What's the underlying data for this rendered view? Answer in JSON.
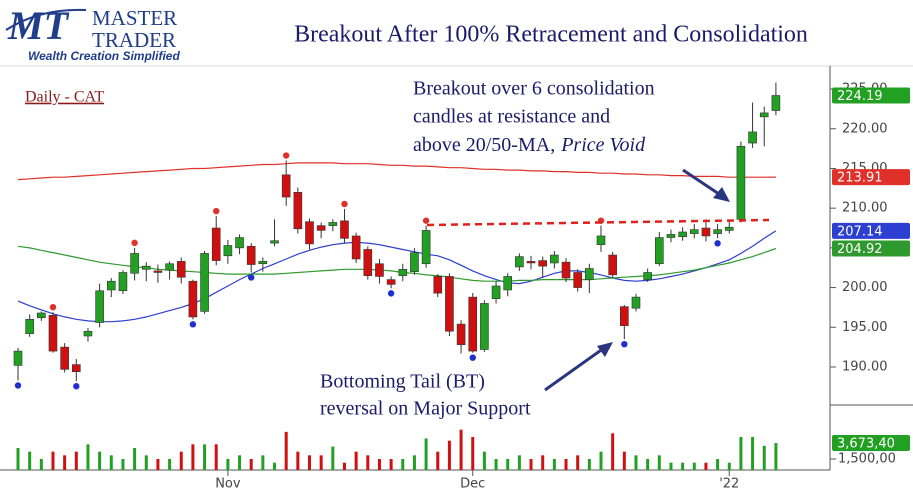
{
  "header": {
    "logo_mark": "MT",
    "logo_line1": "MASTER",
    "logo_line2": "TRADER",
    "tagline": "Wealth Creation Simplified"
  },
  "chart_data": {
    "type": "candlestick",
    "title": "Breakout After 100% Retracement and Consolidation",
    "subtitle": "Daily - CAT",
    "annotations": [
      {
        "lines": [
          "Breakout over 6 consolidation",
          "candles at resistance and",
          "above 20/50-MA,"
        ],
        "italic": "Price Void"
      },
      {
        "lines": [
          "Bottoming Tail (BT)",
          "reversal on Major Support"
        ]
      }
    ],
    "categories": [
      null,
      null,
      null,
      null,
      null,
      null,
      null,
      null,
      null,
      null,
      null,
      null,
      null,
      null,
      null,
      null,
      null,
      null,
      "Nov",
      null,
      null,
      null,
      null,
      null,
      null,
      null,
      null,
      null,
      null,
      null,
      null,
      null,
      null,
      null,
      null,
      null,
      null,
      null,
      null,
      "Dec",
      null,
      null,
      null,
      null,
      null,
      null,
      null,
      null,
      null,
      null,
      null,
      null,
      null,
      null,
      null,
      null,
      null,
      null,
      null,
      null,
      null,
      "'22",
      null,
      null,
      null,
      null
    ],
    "open": [
      190.2,
      194.2,
      196.2,
      196.5,
      192.5,
      190.3,
      193.9,
      195.6,
      199.7,
      199.6,
      201.8,
      202.3,
      202.1,
      202.2,
      203.3,
      200.8,
      197.0,
      207.5,
      204.0,
      205.0,
      205.2,
      203.0,
      205.6,
      214.2,
      212.0,
      208.3,
      207.8,
      207.8,
      208.4,
      206.5,
      204.8,
      203.0,
      201.0,
      201.5,
      202.0,
      203.0,
      201.4,
      201.4,
      195.4,
      198.8,
      192.2,
      198.6,
      199.7,
      202.6,
      203.3,
      203.4,
      203.1,
      203.2,
      201.9,
      201.0,
      205.4,
      204.1,
      197.6,
      197.4,
      201.0,
      203.0,
      206.3,
      206.4,
      206.8,
      207.5,
      206.8,
      207.2,
      208.6,
      218.2,
      221.5,
      222.3
    ],
    "high": [
      192.4,
      196.6,
      197.0,
      196.9,
      193.0,
      191.0,
      194.9,
      200.5,
      201.2,
      202.2,
      205.0,
      203.2,
      202.9,
      203.3,
      203.8,
      201.0,
      204.6,
      209.0,
      206.0,
      206.7,
      205.6,
      203.8,
      208.6,
      216.0,
      212.6,
      208.7,
      208.2,
      208.6,
      209.9,
      206.9,
      205.2,
      203.6,
      201.4,
      203.0,
      205.0,
      207.8,
      201.7,
      201.8,
      195.9,
      199.3,
      198.4,
      200.8,
      201.8,
      204.3,
      204.0,
      203.9,
      204.6,
      203.7,
      202.3,
      203.0,
      207.8,
      204.5,
      197.8,
      199.2,
      202.4,
      207.0,
      207.3,
      207.6,
      208.0,
      208.6,
      208.0,
      208.4,
      218.4,
      223.3,
      222.8,
      225.8
    ],
    "low": [
      188.3,
      193.8,
      195.8,
      191.8,
      189.3,
      188.2,
      193.2,
      195.0,
      198.8,
      199.2,
      200.9,
      200.8,
      200.6,
      201.0,
      200.5,
      196.0,
      196.7,
      202.8,
      203.0,
      204.2,
      201.9,
      202.0,
      205.2,
      210.3,
      206.8,
      204.8,
      206.2,
      207.1,
      205.6,
      203.1,
      201.0,
      200.5,
      199.9,
      200.8,
      201.6,
      202.5,
      198.8,
      193.9,
      191.7,
      191.8,
      191.9,
      198.0,
      198.9,
      202.1,
      202.3,
      201.2,
      202.4,
      200.7,
      199.5,
      199.3,
      204.5,
      201.2,
      193.5,
      197.0,
      200.7,
      202.7,
      205.7,
      205.9,
      206.2,
      205.8,
      206.2,
      206.8,
      208.2,
      217.6,
      217.8,
      221.7
    ],
    "close": [
      192.0,
      196.0,
      196.8,
      192.0,
      189.7,
      189.4,
      194.5,
      199.6,
      200.8,
      201.9,
      204.3,
      202.7,
      201.9,
      203.0,
      201.3,
      196.3,
      204.3,
      203.4,
      205.3,
      206.3,
      202.9,
      203.3,
      205.9,
      211.4,
      207.4,
      205.5,
      207.2,
      208.2,
      206.2,
      203.6,
      201.5,
      201.4,
      200.4,
      202.3,
      204.4,
      207.2,
      199.3,
      194.5,
      192.8,
      192.0,
      198.0,
      200.2,
      201.4,
      203.9,
      203.1,
      202.7,
      204.1,
      201.2,
      200.0,
      202.4,
      206.5,
      201.6,
      195.2,
      198.8,
      201.9,
      206.3,
      206.7,
      207.0,
      207.3,
      206.5,
      207.3,
      207.6,
      217.8,
      219.6,
      222.0,
      224.19
    ],
    "colors": {
      "up": "#22a022",
      "down": "#d01010",
      "pivot_high": "#e0302a",
      "pivot_low": "#1f2fd0"
    },
    "pivot_highs": [
      3,
      10,
      17,
      23,
      28,
      35,
      50
    ],
    "pivot_lows": [
      0,
      5,
      15,
      20,
      32,
      39,
      52,
      60
    ],
    "series": [
      {
        "color": "#e0302a",
        "values": [
          213.6,
          213.7,
          213.8,
          213.9,
          213.9,
          214.0,
          214.1,
          214.2,
          214.3,
          214.4,
          214.5,
          214.6,
          214.7,
          214.8,
          214.9,
          215.0,
          215.0,
          215.1,
          215.2,
          215.3,
          215.4,
          215.5,
          215.5,
          215.6,
          215.7,
          215.7,
          215.7,
          215.7,
          215.6,
          215.6,
          215.6,
          215.5,
          215.4,
          215.4,
          215.3,
          215.3,
          215.2,
          215.1,
          215.1,
          215.0,
          214.9,
          214.9,
          214.8,
          214.8,
          214.7,
          214.7,
          214.6,
          214.6,
          214.5,
          214.5,
          214.4,
          214.4,
          214.3,
          214.3,
          214.2,
          214.2,
          214.1,
          214.1,
          214.0,
          214.0,
          214.0,
          213.9,
          213.9,
          213.9,
          213.9,
          213.91
        ]
      },
      {
        "color": "#2b3fd0",
        "values": [
          198.3,
          197.7,
          197.2,
          196.7,
          196.3,
          196.0,
          195.8,
          195.7,
          195.7,
          195.8,
          196.0,
          196.3,
          196.7,
          197.1,
          197.5,
          198.0,
          198.6,
          199.4,
          200.2,
          201.0,
          201.7,
          202.4,
          203.0,
          203.6,
          204.2,
          204.7,
          205.1,
          205.4,
          205.6,
          205.7,
          205.6,
          205.4,
          205.1,
          204.8,
          204.5,
          204.2,
          204.0,
          203.5,
          202.8,
          202.1,
          201.5,
          201.0,
          200.6,
          200.5,
          200.8,
          201.3,
          201.8,
          202.1,
          202.1,
          201.9,
          201.6,
          201.2,
          200.9,
          200.8,
          200.9,
          201.1,
          201.4,
          201.7,
          202.1,
          202.5,
          203.0,
          203.5,
          204.3,
          205.2,
          206.2,
          207.14
        ]
      },
      {
        "color": "#2e9a2e",
        "values": [
          205.2,
          205.0,
          204.7,
          204.4,
          204.1,
          203.8,
          203.5,
          203.2,
          203.0,
          202.8,
          202.6,
          202.5,
          202.3,
          202.2,
          202.1,
          202.0,
          201.9,
          201.8,
          201.7,
          201.7,
          201.7,
          201.7,
          201.7,
          201.8,
          201.9,
          202.0,
          202.1,
          202.2,
          202.3,
          202.3,
          202.3,
          202.2,
          202.1,
          201.9,
          201.8,
          201.6,
          201.5,
          201.3,
          201.1,
          200.9,
          200.8,
          200.8,
          200.8,
          200.9,
          200.9,
          201.0,
          201.0,
          201.0,
          201.0,
          201.0,
          201.1,
          201.2,
          201.3,
          201.4,
          201.5,
          201.6,
          201.8,
          202.0,
          202.2,
          202.5,
          202.8,
          203.1,
          203.5,
          203.9,
          204.4,
          204.92
        ]
      }
    ],
    "ylim": [
      185.84,
      227.15
    ],
    "yticks": [
      {
        "value": 190,
        "label": "190.00"
      },
      {
        "value": 195,
        "label": "195.00"
      },
      {
        "value": 200,
        "label": "200.00"
      },
      {
        "value": 205,
        "label": "205.00"
      },
      {
        "value": 210,
        "label": "210.00"
      },
      {
        "value": 215,
        "label": "215.00"
      },
      {
        "value": 220,
        "label": "220.00"
      },
      {
        "value": 225,
        "label": "225.00"
      }
    ],
    "volume": {
      "values": [
        3000000,
        2500000,
        1500000,
        2500000,
        2000000,
        2500000,
        3500000,
        2500000,
        2000000,
        1500000,
        3000000,
        2000000,
        1500000,
        1500000,
        2500000,
        3500000,
        3500000,
        3500000,
        1500000,
        2000000,
        1500000,
        2000000,
        1000000,
        5200000,
        2500000,
        2000000,
        2000000,
        3200000,
        1000000,
        2500000,
        2000000,
        1500000,
        1500000,
        1500000,
        2000000,
        4300000,
        2500000,
        4000000,
        5500000,
        4500000,
        2500000,
        1500000,
        1500000,
        2000000,
        1500000,
        2000000,
        1500000,
        1500000,
        2000000,
        1500000,
        2500000,
        5000000,
        2500000,
        2000000,
        1500000,
        2000000,
        1000000,
        1000000,
        1000000,
        1000000,
        1500000,
        1000000,
        4500000,
        4500000,
        3300000,
        3673400
      ],
      "ylim": [
        0,
        6000000
      ],
      "yticks": [
        {
          "value": 1500000,
          "label": "1,500,00"
        }
      ],
      "last_label": "3,673,40"
    }
  }
}
